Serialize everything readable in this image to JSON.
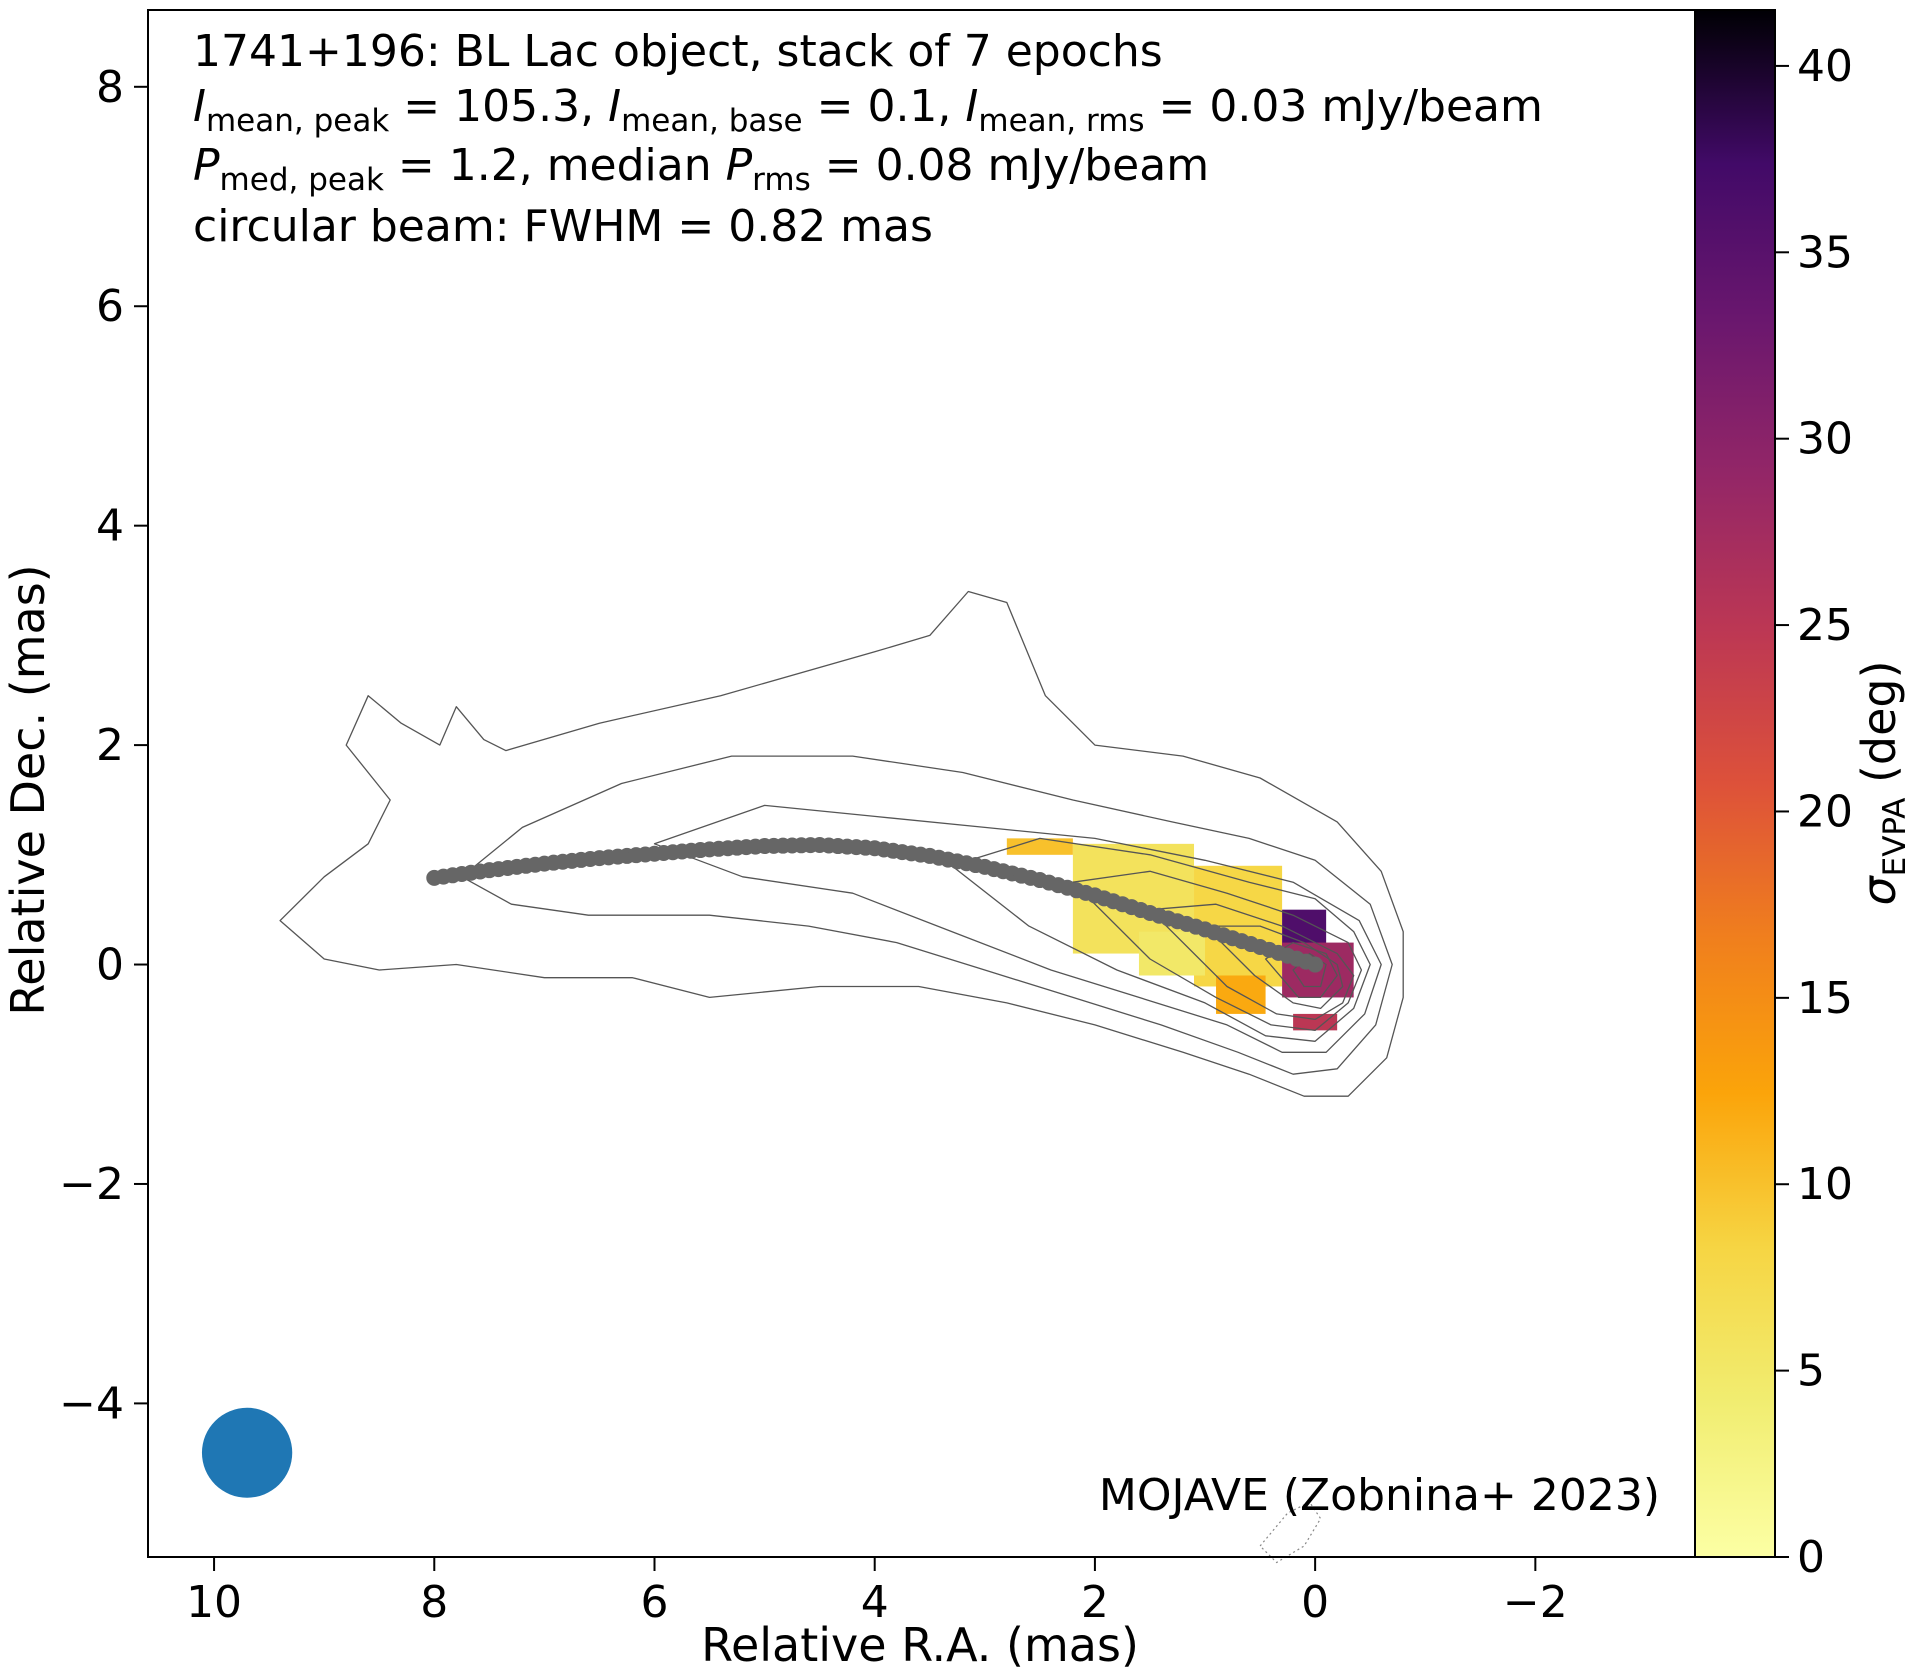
{
  "chart_data": {
    "type": "heatmap",
    "title_lines": [
      "1741+196: BL Lac object, stack of 7 epochs",
      "I_mean,peak = 105.3, I_mean,base = 0.1, I_mean,rms = 0.03 mJy/beam",
      "P_med,peak = 1.2, median P_rms = 0.08 mJy/beam",
      "circular beam: FWHM = 0.82 mas"
    ],
    "info": {
      "line1": "1741+196: BL Lac object, stack of 7 epochs",
      "line2": {
        "s1": "I",
        "s1_sub": "mean, peak",
        "t1": " = 105.3, ",
        "s2": "I",
        "s2_sub": "mean, base",
        "t2": " = 0.1, ",
        "s3": "I",
        "s3_sub": "mean, rms",
        "t3": " = 0.03 mJy/beam"
      },
      "line3": {
        "s1": "P",
        "s1_sub": "med, peak",
        "t1": " = 1.2, median ",
        "s2": "P",
        "s2_sub": "rms",
        "t2": " = 0.08 mJy/beam"
      },
      "line4": "circular beam: FWHM = 0.82 mas"
    },
    "credit": "MOJAVE (Zobnina+ 2023)",
    "xlabel": "Relative R.A. (mas)",
    "ylabel": "Relative Dec. (mas)",
    "xlim": [
      10.6,
      -3.45
    ],
    "ylim": [
      -5.4,
      8.7
    ],
    "x_ticks": [
      10,
      8,
      6,
      4,
      2,
      0,
      -2
    ],
    "x_tick_labels": [
      "10",
      "8",
      "6",
      "4",
      "2",
      "0",
      "−2"
    ],
    "y_ticks": [
      -4,
      -2,
      0,
      2,
      4,
      6,
      8
    ],
    "y_tick_labels": [
      "−4",
      "−2",
      "0",
      "2",
      "4",
      "6",
      "8"
    ],
    "colorbar": {
      "label_symbol": "σ",
      "label_sub": "EVPA",
      "label_unit": " (deg)",
      "cmap": "inferno_r",
      "range": [
        0,
        41.5
      ],
      "ticks": [
        0,
        5,
        10,
        15,
        20,
        25,
        30,
        35,
        40
      ],
      "tick_labels": [
        "0",
        "5",
        "10",
        "15",
        "20",
        "25",
        "30",
        "35",
        "40"
      ]
    },
    "beam": {
      "x": 9.7,
      "y": -4.45,
      "fwhm": 0.82,
      "color": "#1f77b4"
    },
    "ridgeline": {
      "color": "#666666",
      "points": [
        [
          8.0,
          0.79
        ],
        [
          7.5,
          0.86
        ],
        [
          7.0,
          0.92
        ],
        [
          6.5,
          0.97
        ],
        [
          6.0,
          1.01
        ],
        [
          5.5,
          1.05
        ],
        [
          5.0,
          1.08
        ],
        [
          4.5,
          1.09
        ],
        [
          4.0,
          1.06
        ],
        [
          3.5,
          0.99
        ],
        [
          3.0,
          0.89
        ],
        [
          2.5,
          0.77
        ],
        [
          2.0,
          0.63
        ],
        [
          1.5,
          0.47
        ],
        [
          1.0,
          0.32
        ],
        [
          0.5,
          0.16
        ],
        [
          0.0,
          0.0
        ]
      ]
    },
    "contours": [
      [
        [
          8.6,
          2.45
        ],
        [
          8.3,
          2.2
        ],
        [
          7.95,
          2.0
        ],
        [
          7.8,
          2.35
        ],
        [
          7.55,
          2.05
        ],
        [
          7.35,
          1.95
        ],
        [
          6.5,
          2.2
        ],
        [
          5.4,
          2.45
        ],
        [
          4.0,
          2.85
        ],
        [
          3.5,
          3.0
        ],
        [
          3.15,
          3.4
        ],
        [
          2.8,
          3.3
        ],
        [
          2.45,
          2.45
        ],
        [
          2.0,
          2.0
        ],
        [
          1.2,
          1.9
        ],
        [
          0.5,
          1.7
        ],
        [
          -0.2,
          1.3
        ],
        [
          -0.6,
          0.85
        ],
        [
          -0.8,
          0.3
        ],
        [
          -0.8,
          -0.3
        ],
        [
          -0.65,
          -0.85
        ],
        [
          -0.3,
          -1.2
        ],
        [
          0.1,
          -1.2
        ],
        [
          0.6,
          -1.0
        ],
        [
          1.2,
          -0.8
        ],
        [
          2.0,
          -0.55
        ],
        [
          2.8,
          -0.35
        ],
        [
          3.6,
          -0.2
        ],
        [
          4.5,
          -0.2
        ],
        [
          5.5,
          -0.3
        ],
        [
          6.2,
          -0.12
        ],
        [
          7.0,
          -0.12
        ],
        [
          7.8,
          0.0
        ],
        [
          8.5,
          -0.05
        ],
        [
          9.0,
          0.05
        ],
        [
          9.4,
          0.4
        ],
        [
          9.0,
          0.8
        ],
        [
          8.6,
          1.1
        ],
        [
          8.4,
          1.5
        ],
        [
          8.8,
          2.0
        ],
        [
          8.6,
          2.45
        ]
      ],
      [
        [
          7.75,
          0.8
        ],
        [
          7.2,
          1.25
        ],
        [
          6.3,
          1.65
        ],
        [
          5.3,
          1.9
        ],
        [
          4.2,
          1.9
        ],
        [
          3.2,
          1.75
        ],
        [
          2.2,
          1.5
        ],
        [
          1.3,
          1.3
        ],
        [
          0.6,
          1.15
        ],
        [
          0.0,
          0.95
        ],
        [
          -0.5,
          0.55
        ],
        [
          -0.7,
          0.0
        ],
        [
          -0.55,
          -0.55
        ],
        [
          -0.2,
          -0.95
        ],
        [
          0.2,
          -1.0
        ],
        [
          0.7,
          -0.8
        ],
        [
          1.4,
          -0.55
        ],
        [
          2.2,
          -0.3
        ],
        [
          3.0,
          -0.05
        ],
        [
          3.8,
          0.2
        ],
        [
          4.6,
          0.35
        ],
        [
          5.5,
          0.45
        ],
        [
          6.6,
          0.45
        ],
        [
          7.3,
          0.55
        ],
        [
          7.75,
          0.8
        ]
      ],
      [
        [
          6.0,
          1.1
        ],
        [
          5.0,
          1.45
        ],
        [
          4.0,
          1.35
        ],
        [
          3.0,
          1.25
        ],
        [
          2.0,
          1.15
        ],
        [
          1.0,
          0.95
        ],
        [
          0.2,
          0.75
        ],
        [
          -0.4,
          0.4
        ],
        [
          -0.6,
          0.0
        ],
        [
          -0.45,
          -0.45
        ],
        [
          -0.1,
          -0.8
        ],
        [
          0.3,
          -0.8
        ],
        [
          0.8,
          -0.55
        ],
        [
          1.6,
          -0.3
        ],
        [
          2.4,
          -0.05
        ],
        [
          3.3,
          0.3
        ],
        [
          4.2,
          0.65
        ],
        [
          5.2,
          0.8
        ],
        [
          6.0,
          1.1
        ]
      ],
      [
        [
          3.3,
          0.9
        ],
        [
          2.5,
          1.15
        ],
        [
          1.5,
          1.0
        ],
        [
          0.6,
          0.75
        ],
        [
          0.0,
          0.6
        ],
        [
          -0.35,
          0.3
        ],
        [
          -0.5,
          0.0
        ],
        [
          -0.35,
          -0.4
        ],
        [
          0.0,
          -0.7
        ],
        [
          0.45,
          -0.65
        ],
        [
          1.0,
          -0.35
        ],
        [
          1.8,
          -0.05
        ],
        [
          2.6,
          0.35
        ],
        [
          3.3,
          0.9
        ]
      ],
      [
        [
          2.2,
          0.75
        ],
        [
          1.5,
          0.85
        ],
        [
          0.8,
          0.65
        ],
        [
          0.2,
          0.45
        ],
        [
          -0.3,
          0.2
        ],
        [
          -0.42,
          -0.05
        ],
        [
          -0.3,
          -0.35
        ],
        [
          0.0,
          -0.6
        ],
        [
          0.4,
          -0.55
        ],
        [
          0.9,
          -0.3
        ],
        [
          1.5,
          0.05
        ],
        [
          2.2,
          0.75
        ]
      ],
      [
        [
          1.5,
          0.5
        ],
        [
          0.9,
          0.55
        ],
        [
          0.3,
          0.35
        ],
        [
          -0.2,
          0.1
        ],
        [
          -0.35,
          -0.1
        ],
        [
          -0.25,
          -0.35
        ],
        [
          0.0,
          -0.5
        ],
        [
          0.35,
          -0.45
        ],
        [
          0.8,
          -0.2
        ],
        [
          1.5,
          0.5
        ]
      ],
      [
        [
          1.0,
          0.35
        ],
        [
          0.5,
          0.35
        ],
        [
          0.1,
          0.2
        ],
        [
          -0.2,
          0.0
        ],
        [
          -0.25,
          -0.2
        ],
        [
          -0.05,
          -0.4
        ],
        [
          0.2,
          -0.35
        ],
        [
          0.55,
          -0.1
        ],
        [
          1.0,
          0.35
        ]
      ],
      [
        [
          0.45,
          0.05
        ],
        [
          0.2,
          0.2
        ],
        [
          -0.1,
          0.1
        ],
        [
          -0.2,
          -0.1
        ],
        [
          -0.05,
          -0.3
        ],
        [
          0.15,
          -0.3
        ],
        [
          0.45,
          0.05
        ]
      ],
      [
        [
          0.2,
          -0.05
        ],
        [
          0.05,
          0.1
        ],
        [
          -0.1,
          0.0
        ],
        [
          -0.05,
          -0.2
        ],
        [
          0.1,
          -0.2
        ],
        [
          0.2,
          -0.05
        ]
      ]
    ],
    "dotted_contour": [
      [
        0.5,
        -5.3
      ],
      [
        0.25,
        -5.0
      ],
      [
        0.05,
        -4.9
      ],
      [
        -0.05,
        -5.05
      ],
      [
        0.1,
        -5.3
      ],
      [
        0.35,
        -5.45
      ],
      [
        0.5,
        -5.3
      ]
    ],
    "sigma_regions": [
      {
        "x0": 2.8,
        "x1": 2.2,
        "y0": 1.0,
        "y1": 1.15,
        "sigma": 10
      },
      {
        "x0": 2.2,
        "x1": 1.1,
        "y0": 0.1,
        "y1": 1.1,
        "sigma": 6
      },
      {
        "x0": 1.1,
        "x1": 0.3,
        "y0": -0.2,
        "y1": 0.9,
        "sigma": 8
      },
      {
        "x0": 1.6,
        "x1": 1.0,
        "y0": -0.1,
        "y1": 0.3,
        "sigma": 5
      },
      {
        "x0": 0.9,
        "x1": 0.45,
        "y0": -0.45,
        "y1": -0.1,
        "sigma": 12
      },
      {
        "x0": 0.3,
        "x1": -0.1,
        "y0": 0.15,
        "y1": 0.5,
        "sigma": 36
      },
      {
        "x0": 0.3,
        "x1": -0.35,
        "y0": -0.3,
        "y1": 0.2,
        "sigma": 28
      },
      {
        "x0": 0.2,
        "x1": -0.2,
        "y0": -0.6,
        "y1": -0.45,
        "sigma": 25
      }
    ]
  }
}
